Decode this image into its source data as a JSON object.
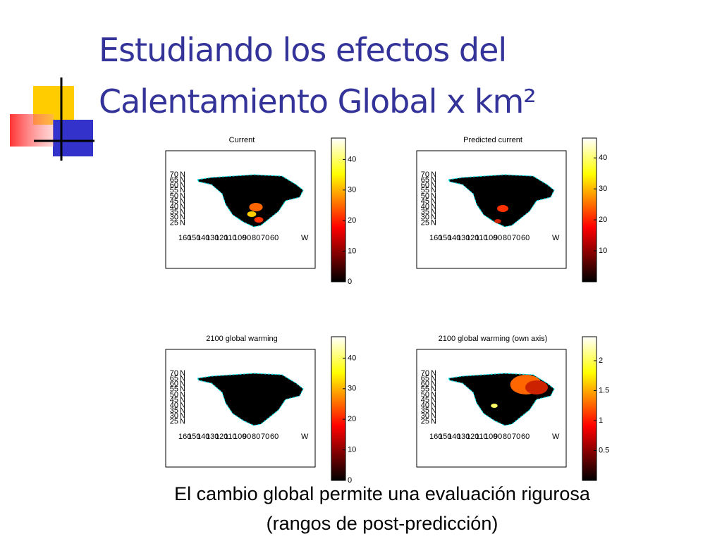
{
  "header": {
    "title_line1": "Estudiando los efectos del",
    "title_line2": "Calentamiento Global x km²"
  },
  "panels": [
    {
      "title": "Current",
      "colorbar_range": [
        0,
        47
      ],
      "colorbar_ticks": [
        0,
        10,
        20,
        30,
        40
      ]
    },
    {
      "title": "Predicted current",
      "colorbar_range": [
        0,
        46.4
      ],
      "colorbar_ticks": [
        10,
        20,
        30,
        40
      ]
    },
    {
      "title": "2100 global warming",
      "colorbar_range": [
        0,
        47
      ],
      "colorbar_ticks": [
        0,
        10,
        20,
        30,
        40
      ]
    },
    {
      "title": "2100 global warming (own axis)",
      "colorbar_range": [
        0,
        2.4
      ],
      "colorbar_ticks": [
        0.5,
        1,
        1.5,
        2
      ]
    }
  ],
  "map_axes": {
    "lat_labels": [
      "70",
      "65",
      "60",
      "55",
      "50",
      "45",
      "40",
      "35",
      "30",
      "25"
    ],
    "lat_suffix": "N",
    "lon_labels": [
      "160",
      "150",
      "140",
      "130",
      "120",
      "110",
      "100",
      "90",
      "80",
      "70",
      "60"
    ],
    "lon_suffix": "W"
  },
  "caption": {
    "line1": "El cambio global permite una evaluación rigurosa",
    "line2": "(rangos de post-predicción)"
  }
}
